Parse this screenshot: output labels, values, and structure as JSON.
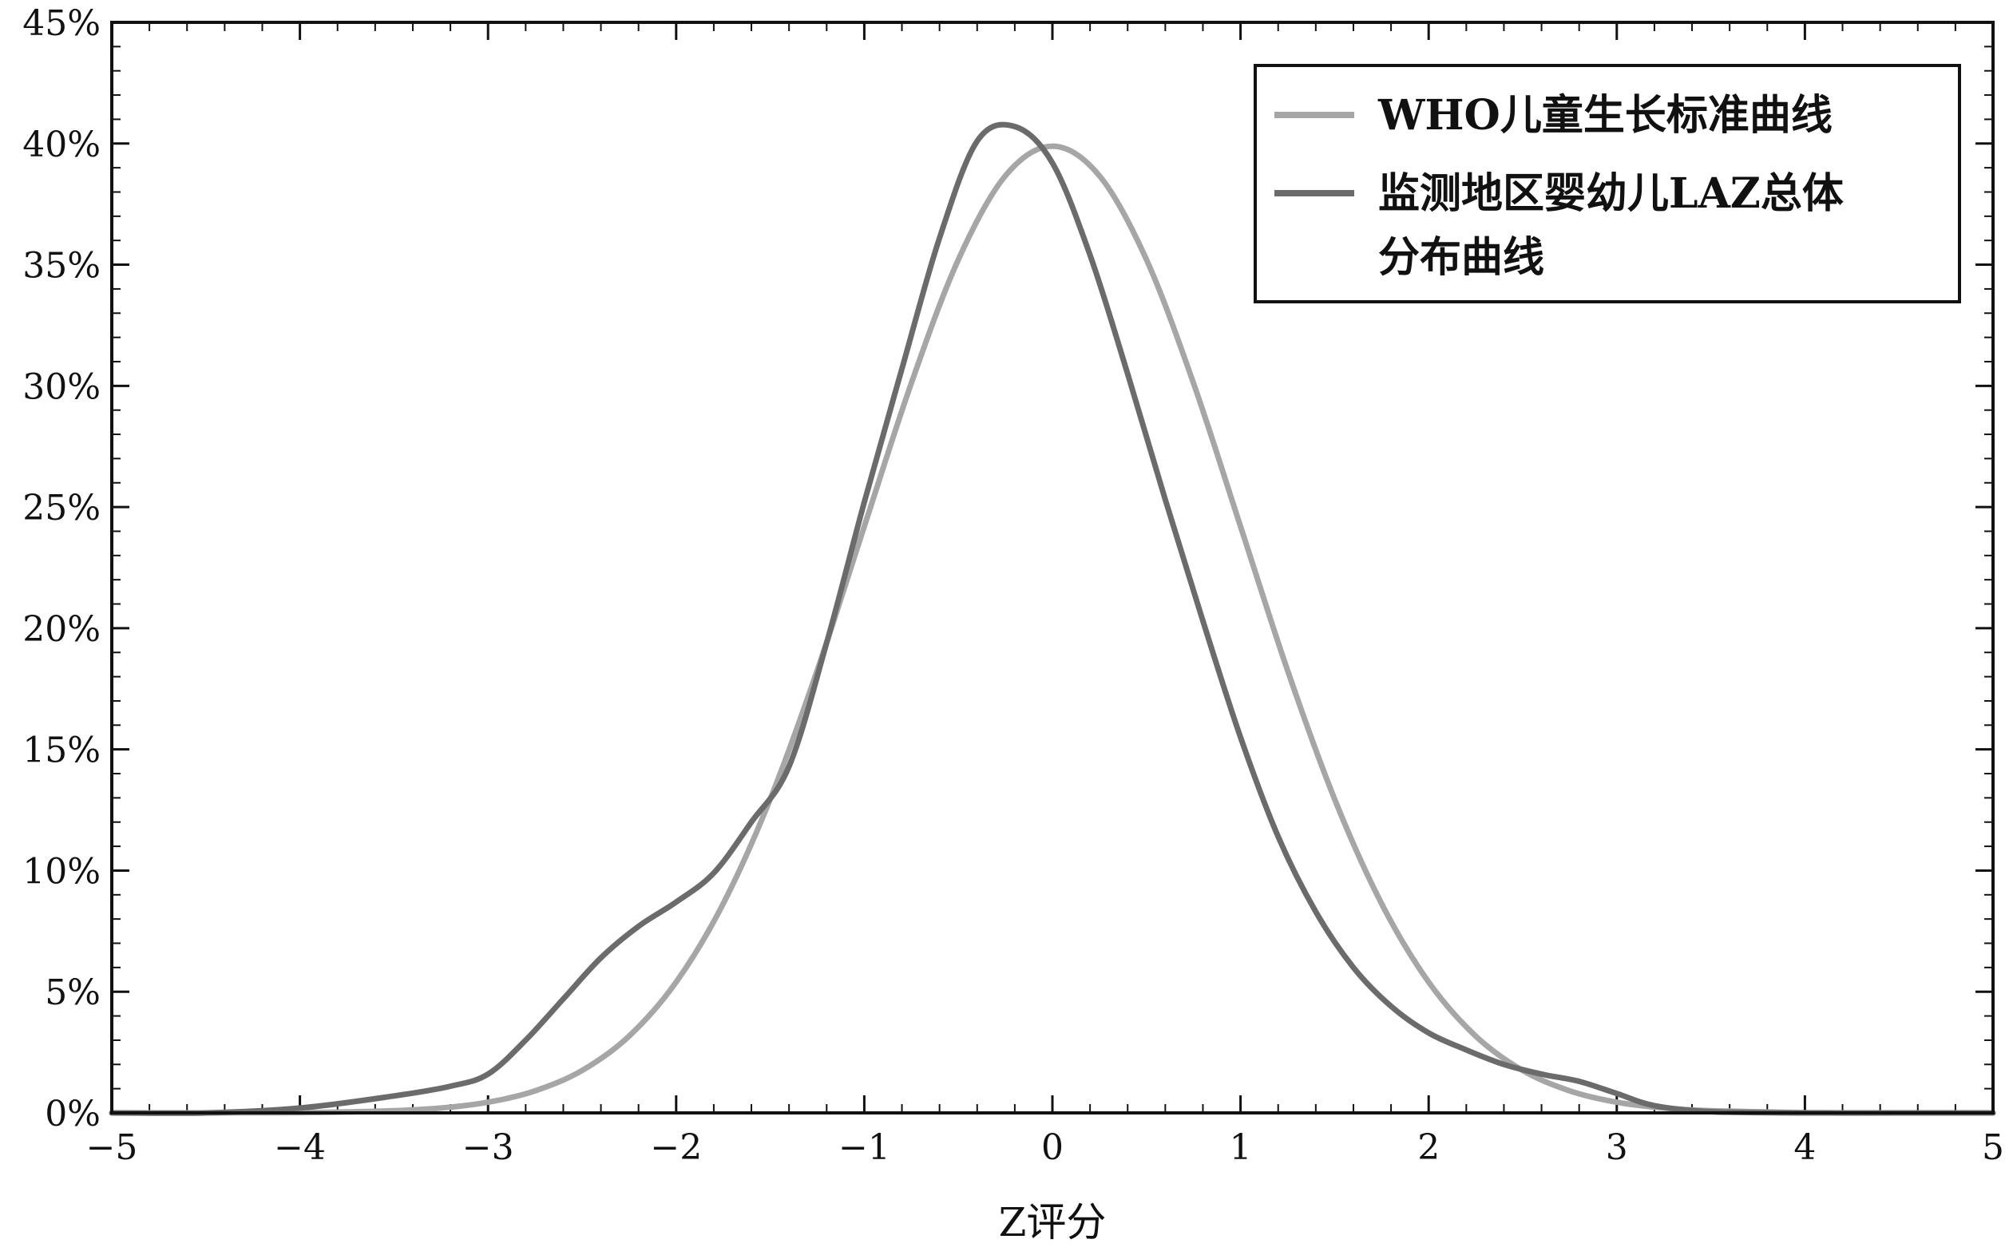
{
  "chart_data": {
    "type": "line",
    "title": "",
    "xlabel": "Z评分",
    "ylabel": "",
    "xlim": [
      -5,
      5
    ],
    "ylim": [
      0,
      0.45
    ],
    "xticks": [
      -5,
      -4,
      -3,
      -2,
      -1,
      0,
      1,
      2,
      3,
      4,
      5
    ],
    "xtick_labels": [
      "−5",
      "−4",
      "−3",
      "−2",
      "−1",
      "0",
      "1",
      "2",
      "3",
      "4",
      "5"
    ],
    "yticks": [
      0,
      0.05,
      0.1,
      0.15,
      0.2,
      0.25,
      0.3,
      0.35,
      0.4,
      0.45
    ],
    "ytick_labels": [
      "0%",
      "5%",
      "10%",
      "15%",
      "20%",
      "25%",
      "30%",
      "35%",
      "40%",
      "45%"
    ],
    "grid": false,
    "legend_position": "top-right",
    "series": [
      {
        "name": "WHO儿童生长标准曲线",
        "color": "#a6a6a6",
        "x": [
          -5,
          -4.5,
          -4,
          -3.75,
          -3.5,
          -3.25,
          -3,
          -2.75,
          -2.5,
          -2.25,
          -2,
          -1.75,
          -1.5,
          -1.25,
          -1,
          -0.75,
          -0.5,
          -0.25,
          0,
          0.25,
          0.5,
          0.75,
          1,
          1.25,
          1.5,
          1.75,
          2,
          2.25,
          2.5,
          2.75,
          3,
          3.25,
          3.5,
          4,
          4.5,
          5
        ],
        "y": [
          0.0,
          0.0,
          0.0001,
          0.0004,
          0.0009,
          0.002,
          0.0044,
          0.0091,
          0.0175,
          0.0317,
          0.054,
          0.0863,
          0.1295,
          0.1826,
          0.242,
          0.3011,
          0.3521,
          0.3867,
          0.3989,
          0.3867,
          0.3521,
          0.3011,
          0.242,
          0.1826,
          0.1295,
          0.0863,
          0.054,
          0.0317,
          0.0175,
          0.0091,
          0.0044,
          0.002,
          0.0009,
          0.0001,
          0.0,
          0.0
        ]
      },
      {
        "name": "监测地区婴幼儿LAZ总体分布曲线",
        "color": "#6b6b6b",
        "x": [
          -5,
          -4.5,
          -4,
          -3.5,
          -3.2,
          -3,
          -2.8,
          -2.6,
          -2.4,
          -2.2,
          -2,
          -1.8,
          -1.6,
          -1.4,
          -1.2,
          -1,
          -0.8,
          -0.6,
          -0.4,
          -0.2,
          0,
          0.2,
          0.4,
          0.6,
          0.8,
          1,
          1.2,
          1.4,
          1.6,
          1.8,
          2,
          2.2,
          2.4,
          2.6,
          2.8,
          3,
          3.2,
          3.5,
          4,
          4.5,
          5
        ],
        "y": [
          0.0,
          0.0,
          0.002,
          0.007,
          0.011,
          0.016,
          0.03,
          0.047,
          0.064,
          0.077,
          0.087,
          0.099,
          0.12,
          0.143,
          0.194,
          0.252,
          0.307,
          0.361,
          0.401,
          0.407,
          0.392,
          0.354,
          0.305,
          0.253,
          0.203,
          0.155,
          0.114,
          0.083,
          0.06,
          0.044,
          0.033,
          0.026,
          0.02,
          0.016,
          0.013,
          0.008,
          0.003,
          0.0005,
          0.0,
          0.0,
          0.0
        ]
      }
    ]
  },
  "legend": {
    "item1_line1": "WHO儿童生长标准曲线",
    "item2_line1": "监测地区婴幼儿LAZ总体",
    "item2_line2": "分布曲线"
  }
}
